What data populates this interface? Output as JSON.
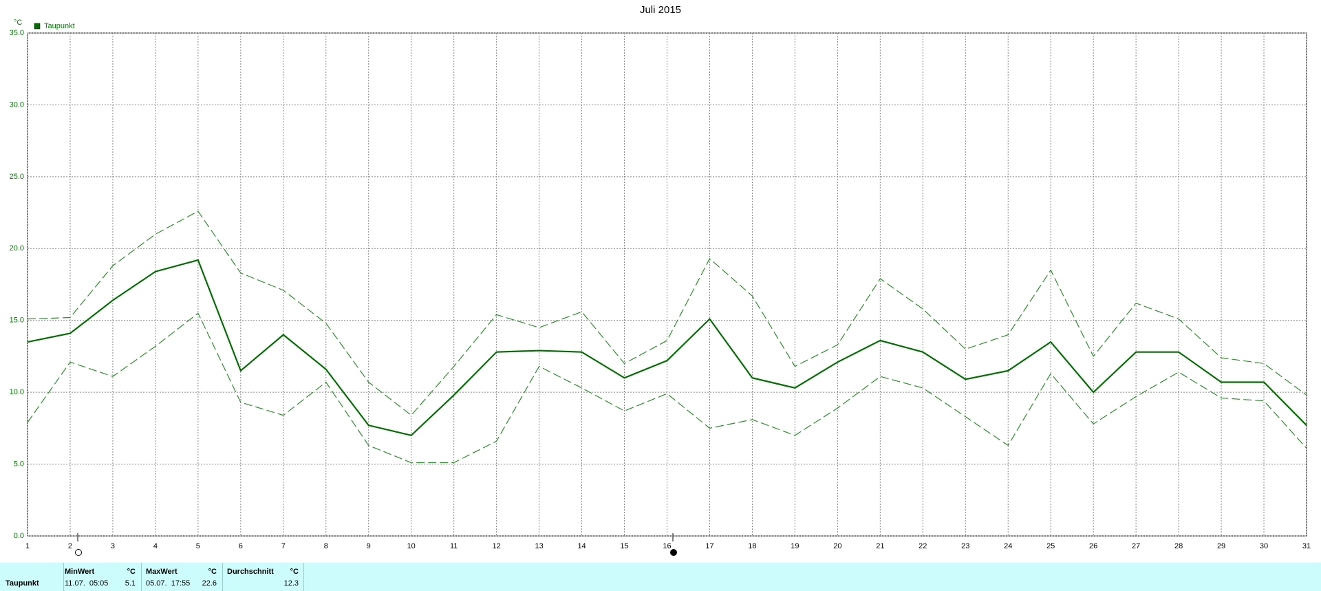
{
  "chart_data": {
    "type": "line",
    "title": "Juli 2015",
    "ylabel": "°C",
    "x": [
      1,
      2,
      3,
      4,
      5,
      6,
      7,
      8,
      9,
      10,
      11,
      12,
      13,
      14,
      15,
      16,
      17,
      18,
      19,
      20,
      21,
      22,
      23,
      24,
      25,
      26,
      27,
      28,
      29,
      30,
      31
    ],
    "series": [
      {
        "name": "Taupunkt",
        "color": "#006f00",
        "linestyle": "solid",
        "values": [
          13.5,
          14.1,
          16.4,
          18.4,
          19.2,
          11.5,
          14.0,
          11.6,
          7.7,
          7.0,
          9.8,
          12.8,
          12.9,
          12.8,
          11.0,
          12.2,
          15.1,
          11.0,
          10.3,
          12.1,
          13.6,
          12.8,
          10.9,
          11.5,
          13.5,
          10.0,
          12.8,
          12.8,
          10.7,
          10.7,
          7.7
        ]
      },
      {
        "color": "#2a8f2a",
        "linestyle": "dashed",
        "values": [
          15.1,
          15.2,
          18.8,
          21.0,
          22.6,
          18.3,
          17.1,
          14.8,
          10.7,
          8.4,
          11.8,
          15.4,
          14.5,
          15.6,
          12.0,
          13.6,
          19.3,
          16.7,
          11.8,
          13.3,
          17.9,
          15.8,
          13.0,
          14.0,
          18.5,
          12.5,
          16.2,
          15.1,
          12.4,
          12.0,
          9.8
        ]
      },
      {
        "color": "#2a8f2a",
        "linestyle": "dashed",
        "values": [
          7.9,
          12.1,
          11.1,
          13.2,
          15.5,
          9.3,
          8.4,
          10.7,
          6.3,
          5.1,
          5.1,
          6.6,
          11.8,
          10.3,
          8.7,
          9.9,
          7.5,
          8.1,
          7.0,
          8.9,
          11.1,
          10.3,
          8.3,
          6.3,
          11.3,
          7.8,
          9.7,
          11.4,
          9.6,
          9.4,
          6.1
        ]
      }
    ],
    "xlim": [
      1,
      31
    ],
    "xticks": [
      1,
      2,
      3,
      4,
      5,
      6,
      7,
      8,
      9,
      10,
      11,
      12,
      13,
      14,
      15,
      16,
      17,
      18,
      19,
      20,
      21,
      22,
      23,
      24,
      25,
      26,
      27,
      28,
      29,
      30,
      31
    ],
    "ylim": [
      0,
      35
    ],
    "yticks": [
      {
        "value": 0,
        "label": "0.0"
      },
      {
        "value": 5,
        "label": "5.0"
      },
      {
        "value": 10,
        "label": "10.0"
      },
      {
        "value": 15,
        "label": "15.0"
      },
      {
        "value": 20,
        "label": "20.0"
      },
      {
        "value": 25,
        "label": "25.0"
      },
      {
        "value": 30,
        "label": "30.0"
      },
      {
        "value": 35,
        "label": "35.0"
      }
    ],
    "grid": true,
    "legend": "top-left"
  },
  "summary": {
    "headers": [
      "MinWert",
      "°C",
      "MaxWert",
      "°C",
      "Durchschnitt",
      "°C"
    ],
    "rows": [
      [
        "Taupunkt",
        "11.07.  05:05",
        "5.1",
        "05.07.  17:55",
        "22.6",
        "12.3"
      ]
    ]
  }
}
